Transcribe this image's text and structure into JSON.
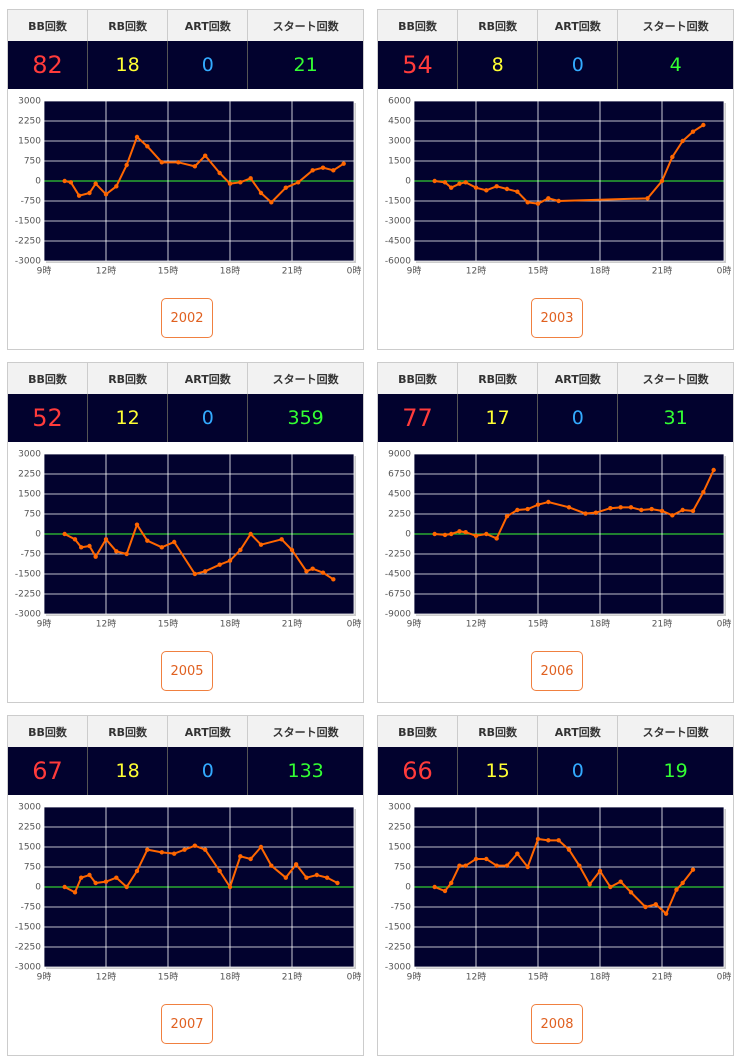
{
  "headers": [
    "BB回数",
    "RB回数",
    "ART回数",
    "スタート回数"
  ],
  "panels": [
    {
      "stats": [
        82,
        18,
        0,
        21
      ],
      "button": "2002",
      "chart": {
        "type": "line",
        "color": "#ff6600",
        "x": [
          10,
          10.3,
          10.7,
          11.2,
          11.5,
          12,
          12.5,
          13,
          13.5,
          14,
          14.7,
          15.5,
          16.3,
          16.8,
          17.5,
          18,
          18.5,
          19,
          19.5,
          20,
          20.7,
          21.3,
          22,
          22.5,
          23,
          23.5
        ],
        "values": [
          0,
          -50,
          -550,
          -450,
          -100,
          -500,
          -200,
          600,
          1650,
          1300,
          700,
          700,
          550,
          950,
          300,
          -100,
          -50,
          100,
          -450,
          -800,
          -250,
          -50,
          400,
          500,
          400,
          650
        ],
        "xlim": [
          9,
          24
        ],
        "xticks": [
          {
            "value": 9,
            "label": "9時"
          },
          {
            "value": 12,
            "label": "12時"
          },
          {
            "value": 15,
            "label": "15時"
          },
          {
            "value": 18,
            "label": "18時"
          },
          {
            "value": 21,
            "label": "21時"
          },
          {
            "value": 24,
            "label": "0時"
          }
        ],
        "ylim": [
          -3000,
          3000
        ],
        "yticks": [
          3000,
          2250,
          1500,
          750,
          0,
          -750,
          -1500,
          -2250,
          -3000
        ]
      }
    },
    {
      "stats": [
        54,
        8,
        0,
        4
      ],
      "button": "2003",
      "chart": {
        "type": "line",
        "color": "#ff6600",
        "x": [
          10,
          10.5,
          10.8,
          11.2,
          11.5,
          12,
          12.5,
          13,
          13.5,
          14,
          14.5,
          15,
          15.5,
          16,
          20.3,
          21,
          21.5,
          22,
          22.5,
          23
        ],
        "values": [
          0,
          -100,
          -500,
          -200,
          -100,
          -500,
          -700,
          -400,
          -600,
          -800,
          -1600,
          -1700,
          -1300,
          -1500,
          -1300,
          0,
          1800,
          3000,
          3700,
          4200
        ],
        "xlim": [
          9,
          24
        ],
        "xticks": [
          {
            "value": 9,
            "label": "9時"
          },
          {
            "value": 12,
            "label": "12時"
          },
          {
            "value": 15,
            "label": "15時"
          },
          {
            "value": 18,
            "label": "18時"
          },
          {
            "value": 21,
            "label": "21時"
          },
          {
            "value": 24,
            "label": "0時"
          }
        ],
        "ylim": [
          -6000,
          6000
        ],
        "yticks": [
          6000,
          4500,
          3000,
          1500,
          0,
          -1500,
          -3000,
          -4500,
          -6000
        ]
      }
    },
    {
      "stats": [
        52,
        12,
        0,
        359
      ],
      "button": "2005",
      "chart": {
        "type": "line",
        "color": "#ff6600",
        "x": [
          10,
          10.5,
          10.8,
          11.2,
          11.5,
          12,
          12.5,
          13,
          13.5,
          14,
          14.7,
          15.3,
          16.3,
          16.8,
          17.5,
          18,
          18.5,
          19,
          19.5,
          20.5,
          21,
          21.7,
          22,
          22.5,
          23
        ],
        "values": [
          0,
          -200,
          -500,
          -450,
          -850,
          -200,
          -650,
          -750,
          350,
          -250,
          -500,
          -300,
          -1500,
          -1400,
          -1150,
          -1000,
          -600,
          0,
          -400,
          -200,
          -600,
          -1400,
          -1300,
          -1450,
          -1700
        ],
        "xlim": [
          9,
          24
        ],
        "xticks": [
          {
            "value": 9,
            "label": "9時"
          },
          {
            "value": 12,
            "label": "12時"
          },
          {
            "value": 15,
            "label": "15時"
          },
          {
            "value": 18,
            "label": "18時"
          },
          {
            "value": 21,
            "label": "21時"
          },
          {
            "value": 24,
            "label": "0時"
          }
        ],
        "ylim": [
          -3000,
          3000
        ],
        "yticks": [
          3000,
          2250,
          1500,
          750,
          0,
          -750,
          -1500,
          -2250,
          -3000
        ]
      }
    },
    {
      "stats": [
        77,
        17,
        0,
        31
      ],
      "button": "2006",
      "chart": {
        "type": "line",
        "color": "#ff6600",
        "x": [
          10,
          10.5,
          10.8,
          11.2,
          11.5,
          12,
          12.5,
          13,
          13.5,
          14,
          14.5,
          15,
          15.5,
          16.5,
          17.3,
          17.8,
          18.5,
          19,
          19.5,
          20,
          20.5,
          21,
          21.5,
          22,
          22.5,
          23,
          23.5
        ],
        "values": [
          0,
          -100,
          0,
          300,
          200,
          -200,
          0,
          -500,
          2000,
          2700,
          2800,
          3300,
          3600,
          3000,
          2300,
          2400,
          2900,
          3000,
          3000,
          2700,
          2800,
          2600,
          2100,
          2700,
          2600,
          4700,
          7200
        ],
        "xlim": [
          9,
          24
        ],
        "xticks": [
          {
            "value": 9,
            "label": "9時"
          },
          {
            "value": 12,
            "label": "12時"
          },
          {
            "value": 15,
            "label": "15時"
          },
          {
            "value": 18,
            "label": "18時"
          },
          {
            "value": 21,
            "label": "21時"
          },
          {
            "value": 24,
            "label": "0時"
          }
        ],
        "ylim": [
          -9000,
          9000
        ],
        "yticks": [
          9000,
          6750,
          4500,
          2250,
          0,
          -2250,
          -4500,
          -6750,
          -9000
        ]
      }
    },
    {
      "stats": [
        67,
        18,
        0,
        133
      ],
      "button": "2007",
      "chart": {
        "type": "line",
        "color": "#ff6600",
        "x": [
          10,
          10.5,
          10.8,
          11.2,
          11.5,
          12,
          12.5,
          13,
          13.5,
          14,
          14.7,
          15.3,
          15.8,
          16.3,
          16.8,
          17.5,
          18,
          18.5,
          19,
          19.5,
          20,
          20.7,
          21.2,
          21.7,
          22.2,
          22.7,
          23.2
        ],
        "values": [
          0,
          -200,
          350,
          450,
          150,
          200,
          350,
          0,
          600,
          1400,
          1300,
          1250,
          1400,
          1550,
          1400,
          600,
          0,
          1150,
          1050,
          1500,
          800,
          350,
          850,
          350,
          450,
          350,
          150
        ],
        "xlim": [
          9,
          24
        ],
        "xticks": [
          {
            "value": 9,
            "label": "9時"
          },
          {
            "value": 12,
            "label": "12時"
          },
          {
            "value": 15,
            "label": "15時"
          },
          {
            "value": 18,
            "label": "18時"
          },
          {
            "value": 21,
            "label": "21時"
          },
          {
            "value": 24,
            "label": "0時"
          }
        ],
        "ylim": [
          -3000,
          3000
        ],
        "yticks": [
          3000,
          2250,
          1500,
          750,
          0,
          -750,
          -1500,
          -2250,
          -3000
        ]
      }
    },
    {
      "stats": [
        66,
        15,
        0,
        19
      ],
      "button": "2008",
      "chart": {
        "type": "line",
        "color": "#ff6600",
        "x": [
          10,
          10.5,
          10.8,
          11.2,
          11.5,
          12,
          12.5,
          13,
          13.5,
          14,
          14.5,
          15,
          15.5,
          16,
          16.5,
          17,
          17.5,
          18,
          18.5,
          19,
          19.5,
          20.2,
          20.7,
          21.2,
          21.7,
          22,
          22.5
        ],
        "values": [
          0,
          -150,
          150,
          800,
          800,
          1050,
          1050,
          800,
          800,
          1250,
          750,
          1800,
          1750,
          1750,
          1400,
          800,
          100,
          600,
          0,
          200,
          -200,
          -750,
          -650,
          -1000,
          -100,
          150,
          650
        ],
        "xlim": [
          9,
          24
        ],
        "xticks": [
          {
            "value": 9,
            "label": "9時"
          },
          {
            "value": 12,
            "label": "12時"
          },
          {
            "value": 15,
            "label": "15時"
          },
          {
            "value": 18,
            "label": "18時"
          },
          {
            "value": 21,
            "label": "21時"
          },
          {
            "value": 24,
            "label": "0時"
          }
        ],
        "ylim": [
          -3000,
          3000
        ],
        "yticks": [
          3000,
          2250,
          1500,
          750,
          0,
          -750,
          -1500,
          -2250,
          -3000
        ]
      }
    }
  ]
}
